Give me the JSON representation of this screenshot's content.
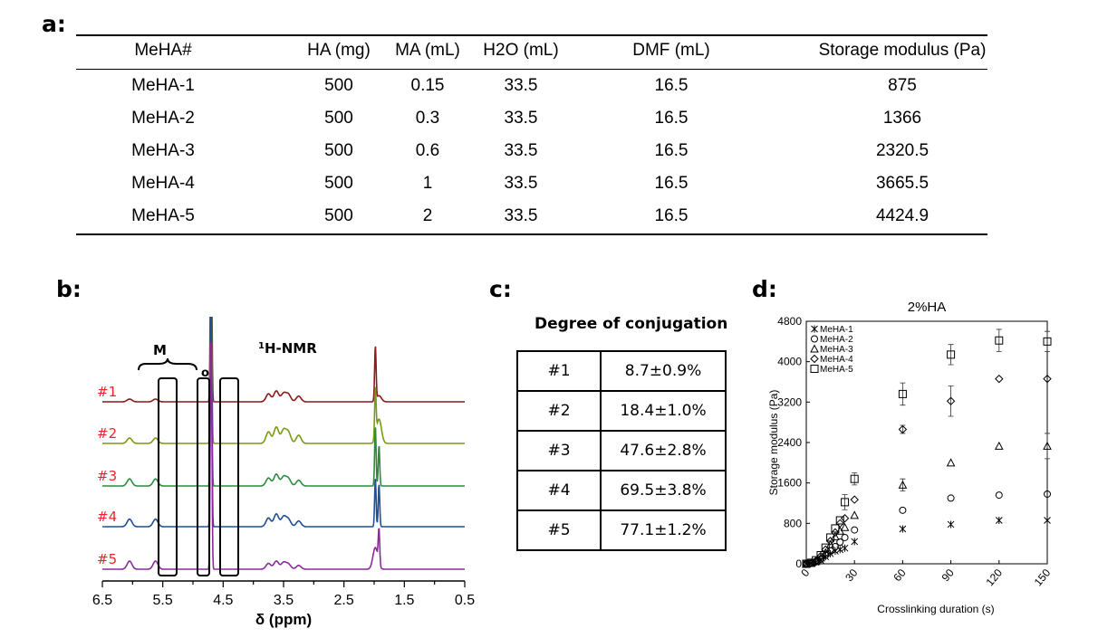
{
  "panels": {
    "a": "a:",
    "b": "b:",
    "c": "c:",
    "d": "d:"
  },
  "table_a": {
    "headers": [
      "MeHA#",
      "HA (mg)",
      "MA (mL)",
      "H2O (mL)",
      "DMF (mL)",
      "Storage modulus (Pa)"
    ],
    "rows": [
      [
        "MeHA-1",
        "500",
        "0.15",
        "33.5",
        "16.5",
        "875"
      ],
      [
        "MeHA-2",
        "500",
        "0.3",
        "33.5",
        "16.5",
        "1366"
      ],
      [
        "MeHA-3",
        "500",
        "0.6",
        "33.5",
        "16.5",
        "2320.5"
      ],
      [
        "MeHA-4",
        "500",
        "1",
        "33.5",
        "16.5",
        "3665.5"
      ],
      [
        "MeHA-5",
        "500",
        "2",
        "33.5",
        "16.5",
        "4424.9"
      ]
    ]
  },
  "nmr": {
    "title_sup": "1",
    "title_main": "H-NMR",
    "peak_label_m": "M",
    "peak_label_o": "o",
    "xlabel": "δ (ppm)",
    "xticks": [
      "6.5",
      "5.5",
      "4.5",
      "3.5",
      "2.5",
      "1.5",
      "0.5"
    ],
    "spectra": [
      {
        "label": "#1",
        "color": "#8b1a1a"
      },
      {
        "label": "#2",
        "color": "#7a9a12"
      },
      {
        "label": "#3",
        "color": "#2e8b3e"
      },
      {
        "label": "#4",
        "color": "#1f4e9a"
      },
      {
        "label": "#5",
        "color": "#8a2a9a"
      }
    ],
    "label_color": "#e8262a"
  },
  "conjugation": {
    "title": "Degree of conjugation",
    "rows": [
      {
        "id": "#1",
        "value": "8.7±0.9%"
      },
      {
        "id": "#2",
        "value": "18.4±1.0%"
      },
      {
        "id": "#3",
        "value": "47.6±2.8%"
      },
      {
        "id": "#4",
        "value": "69.5±3.8%"
      },
      {
        "id": "#5",
        "value": "77.1±1.2%"
      }
    ]
  },
  "chart_data": {
    "type": "scatter",
    "title": "2%HA",
    "xlabel": "Crosslinking duration (s)",
    "ylabel": "Storage modulus (Pa)",
    "xlim": [
      0,
      150
    ],
    "ylim": [
      0,
      4800
    ],
    "xticks": [
      "0",
      "30",
      "60",
      "90",
      "120",
      "150"
    ],
    "yticks": [
      "0",
      "800",
      "1600",
      "2400",
      "3200",
      "4000",
      "4800"
    ],
    "legend_position": "top-left",
    "series": [
      {
        "name": "MeHA-1",
        "marker": "asterisk",
        "x": [
          0,
          3,
          6,
          9,
          12,
          15,
          18,
          21,
          24,
          30,
          60,
          90,
          120,
          150
        ],
        "y": [
          0,
          10,
          30,
          70,
          140,
          200,
          250,
          280,
          310,
          440,
          690,
          780,
          860,
          860
        ],
        "err": [
          0,
          0,
          0,
          0,
          0,
          0,
          0,
          0,
          0,
          0,
          0,
          0,
          0,
          0
        ]
      },
      {
        "name": "MeHA-2",
        "marker": "circle",
        "x": [
          0,
          3,
          6,
          9,
          12,
          15,
          18,
          21,
          24,
          30,
          60,
          90,
          120,
          150
        ],
        "y": [
          0,
          10,
          40,
          90,
          170,
          260,
          340,
          430,
          520,
          670,
          1060,
          1300,
          1360,
          1380
        ],
        "err": [
          0,
          0,
          0,
          0,
          0,
          0,
          0,
          0,
          0,
          0,
          0,
          0,
          0,
          0
        ]
      },
      {
        "name": "MeHA-3",
        "marker": "triangle",
        "x": [
          0,
          3,
          6,
          9,
          12,
          15,
          18,
          21,
          24,
          30,
          60,
          90,
          120,
          150
        ],
        "y": [
          0,
          15,
          50,
          120,
          220,
          380,
          540,
          650,
          720,
          960,
          1560,
          2000,
          2330,
          2330
        ],
        "err": [
          0,
          0,
          0,
          0,
          0,
          0,
          0,
          0,
          0,
          0,
          120,
          0,
          0,
          250
        ]
      },
      {
        "name": "MeHA-4",
        "marker": "diamond",
        "x": [
          0,
          3,
          6,
          9,
          12,
          15,
          18,
          21,
          24,
          30,
          60,
          90,
          120,
          150
        ],
        "y": [
          0,
          20,
          60,
          150,
          280,
          450,
          620,
          800,
          900,
          1270,
          2660,
          3220,
          3660,
          3660
        ],
        "err": [
          0,
          0,
          0,
          0,
          0,
          0,
          0,
          0,
          0,
          0,
          80,
          300,
          0,
          0
        ]
      },
      {
        "name": "MeHA-5",
        "marker": "square",
        "x": [
          0,
          3,
          6,
          9,
          12,
          15,
          18,
          21,
          24,
          30,
          60,
          90,
          120,
          150
        ],
        "y": [
          0,
          20,
          70,
          170,
          320,
          520,
          700,
          860,
          1220,
          1680,
          3360,
          4140,
          4420,
          4400
        ],
        "err": [
          0,
          0,
          0,
          0,
          0,
          0,
          0,
          0,
          150,
          120,
          220,
          200,
          220,
          200
        ]
      }
    ]
  }
}
